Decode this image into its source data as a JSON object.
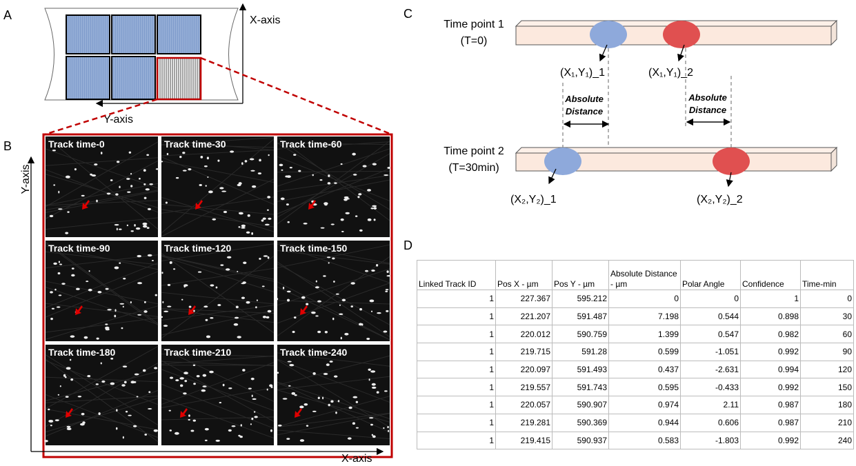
{
  "panel_a": {
    "label": "A",
    "x_axis": "X-axis",
    "y_axis": "Y-axis"
  },
  "panel_b": {
    "label": "B",
    "y_axis": "Y-axis",
    "x_axis": "X-axis",
    "tiles": [
      "Track time-0",
      "Track time-30",
      "Track time-60",
      "Track time-90",
      "Track time-120",
      "Track time-150",
      "Track time-180",
      "Track time-210",
      "Track time-240"
    ]
  },
  "panel_c": {
    "label": "C",
    "time_point_1": "Time point 1",
    "time_1": "(T=0)",
    "time_point_2": "Time point 2",
    "time_2": "(T=30min)",
    "p11": "(X₁,Y₁)_1",
    "p12": "(X₁,Y₁)_2",
    "p21": "(X₂,Y₂)_1",
    "p22": "(X₂,Y₂)_2",
    "distance_1": [
      "Absolute",
      "Distance"
    ],
    "distance_2": [
      "Absolute",
      "Distance"
    ]
  },
  "panel_d": {
    "label": "D",
    "table": {
      "header": [
        "Linked Track ID",
        "Pos X - µm",
        "Pos Y - µm",
        "Absolute Distance - µm",
        "Polar Angle",
        "Confidence",
        "Time-min"
      ],
      "rows": [
        [
          1,
          227.367,
          595.212,
          0,
          0,
          1,
          0
        ],
        [
          1,
          221.207,
          591.487,
          7.198,
          0.544,
          0.898,
          30
        ],
        [
          1,
          220.012,
          590.759,
          1.399,
          0.547,
          0.982,
          60
        ],
        [
          1,
          219.715,
          591.28,
          0.599,
          -1.051,
          0.992,
          90
        ],
        [
          1,
          220.097,
          591.493,
          0.437,
          -2.631,
          0.994,
          120
        ],
        [
          1,
          219.557,
          591.743,
          0.595,
          -0.433,
          0.992,
          150
        ],
        [
          1,
          220.057,
          590.907,
          0.974,
          2.11,
          0.987,
          180
        ],
        [
          1,
          219.281,
          590.369,
          0.944,
          0.606,
          0.987,
          210
        ],
        [
          1,
          219.415,
          590.937,
          0.583,
          -1.803,
          0.992,
          240
        ]
      ]
    }
  }
}
